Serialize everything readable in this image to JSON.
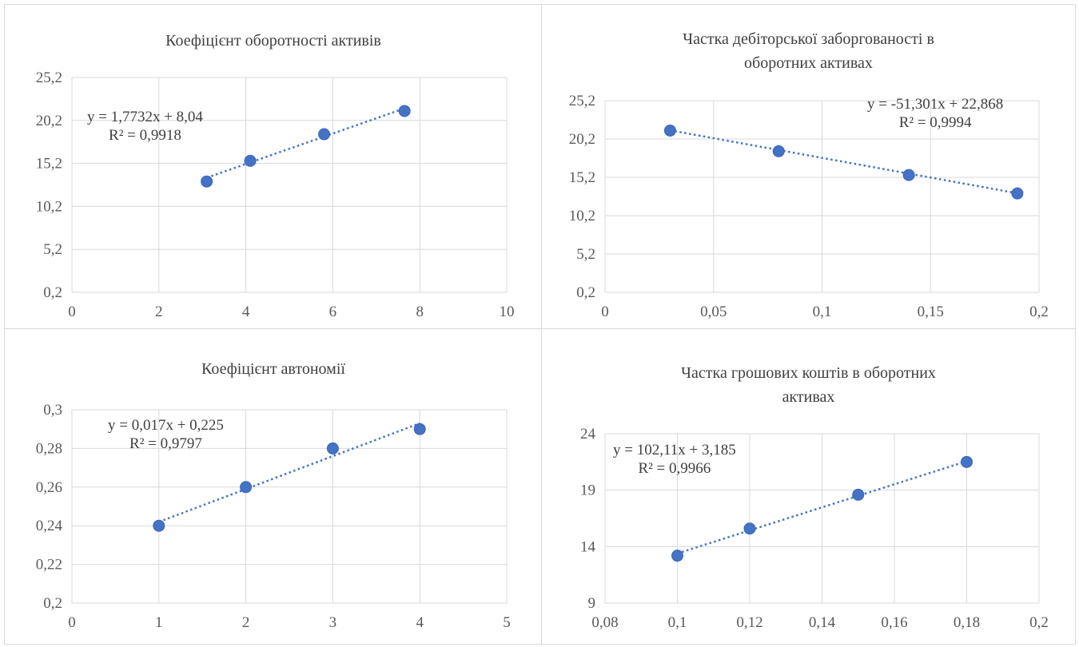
{
  "chart_data": [
    {
      "type": "scatter",
      "title": [
        "Коефіцієнт оборотності активів"
      ],
      "x": [
        3.1,
        4.1,
        5.8,
        7.65
      ],
      "y": [
        13.1,
        15.5,
        18.6,
        21.3
      ],
      "xlim": [
        0,
        10
      ],
      "ylim": [
        0.2,
        25.2
      ],
      "xticks": [
        "0",
        "2",
        "4",
        "6",
        "8",
        "10"
      ],
      "yticks": [
        "0,2",
        "5,2",
        "10,2",
        "15,2",
        "20,2",
        "25,2"
      ],
      "trendline": {
        "type": "linear",
        "slope": 1.7732,
        "intercept": 8.04,
        "x_range": [
          3.1,
          7.65
        ]
      },
      "equation": [
        "y = 1,7732x + 8,04",
        "R² = 0,9918"
      ],
      "grid": true,
      "marker_color": "#4472c4"
    },
    {
      "type": "scatter",
      "title": [
        "Частка дебіторської заборгованості в",
        "оборотних активах"
      ],
      "x": [
        0.03,
        0.08,
        0.14,
        0.19
      ],
      "y": [
        21.3,
        18.6,
        15.5,
        13.1
      ],
      "xlim": [
        0,
        0.2
      ],
      "ylim": [
        0.2,
        25.2
      ],
      "xticks": [
        "0",
        "0,05",
        "0,1",
        "0,15",
        "0,2"
      ],
      "yticks": [
        "0,2",
        "5,2",
        "10,2",
        "15,2",
        "20,2",
        "25,2"
      ],
      "trendline": {
        "type": "linear",
        "slope": -51.301,
        "intercept": 22.868,
        "x_range": [
          0.03,
          0.19
        ]
      },
      "equation": [
        "y = -51,301x + 22,868",
        "R² = 0,9994"
      ],
      "grid": true,
      "marker_color": "#4472c4"
    },
    {
      "type": "scatter",
      "title": [
        "Коефіцієнт автономії"
      ],
      "x": [
        1,
        2,
        3,
        4
      ],
      "y": [
        0.24,
        0.26,
        0.28,
        0.29
      ],
      "xlim": [
        0,
        5
      ],
      "ylim": [
        0.2,
        0.3
      ],
      "xticks": [
        "0",
        "1",
        "2",
        "3",
        "4",
        "5"
      ],
      "yticks": [
        "0,2",
        "0,22",
        "0,24",
        "0,26",
        "0,28",
        "0,3"
      ],
      "trendline": {
        "type": "linear",
        "slope": 0.017,
        "intercept": 0.225,
        "x_range": [
          1,
          4
        ]
      },
      "equation": [
        "y = 0,017x + 0,225",
        "R² = 0,9797"
      ],
      "grid": true,
      "marker_color": "#4472c4"
    },
    {
      "type": "scatter",
      "title": [
        "Частка грошових коштів в оборотних",
        "активах"
      ],
      "x": [
        0.1,
        0.12,
        0.15,
        0.18
      ],
      "y": [
        13.2,
        15.6,
        18.6,
        21.5
      ],
      "xlim": [
        0.08,
        0.2
      ],
      "ylim": [
        9,
        24
      ],
      "xticks": [
        "0,08",
        "0,1",
        "0,12",
        "0,14",
        "0,16",
        "0,18",
        "0,2"
      ],
      "yticks": [
        "9",
        "14",
        "19",
        "24"
      ],
      "trendline": {
        "type": "linear",
        "slope": 102.11,
        "intercept": 3.185,
        "x_range": [
          0.1,
          0.18
        ]
      },
      "equation": [
        "y = 102,11x + 3,185",
        "R² = 0,9966"
      ],
      "grid": true,
      "marker_color": "#4472c4"
    }
  ]
}
